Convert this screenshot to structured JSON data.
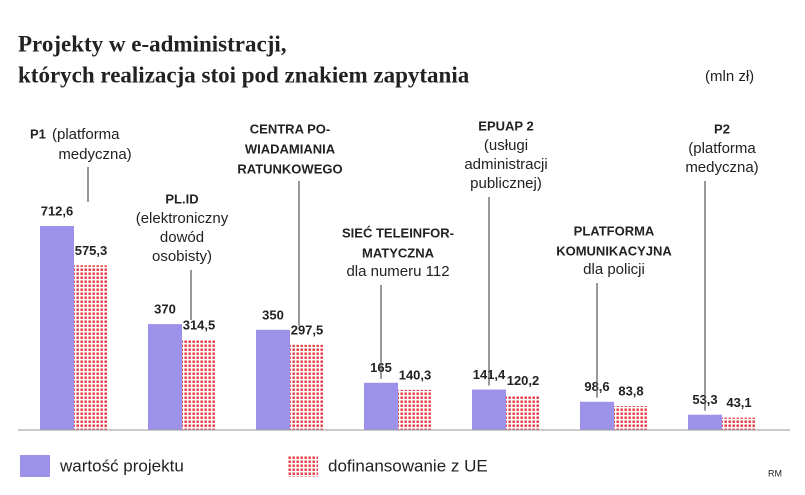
{
  "chart_data": {
    "type": "bar",
    "title": [
      "Projekty w e-administracji,",
      "których realizacja stoi pod znakiem zapytania"
    ],
    "unit": "(mln zł)",
    "credit": "RM",
    "categories": [
      {
        "title": [
          "P1"
        ],
        "note": [
          "(platforma",
          "medyczna)"
        ]
      },
      {
        "title": [
          "PL.ID"
        ],
        "note": [
          "(elektroniczny",
          "dowód",
          "osobisty)"
        ]
      },
      {
        "title": [
          "CENTRA PO-",
          "WIADAMIANIA",
          "RATUNKOWEGO"
        ],
        "note": []
      },
      {
        "title": [
          "SIEĆ TELEINFOR-",
          "MATYCZNA"
        ],
        "note": [
          "dla numeru 112"
        ]
      },
      {
        "title": [
          "EPUAP 2"
        ],
        "note": [
          "(usługi",
          "administracji",
          "publicznej)"
        ]
      },
      {
        "title": [
          "PLATFORMA",
          "KOMUNIKACYJNA"
        ],
        "note": [
          "dla policji"
        ]
      },
      {
        "title": [
          "P2"
        ],
        "note": [
          "(platforma",
          "medyczna)"
        ]
      }
    ],
    "series": [
      {
        "name": "wartość projektu",
        "color": "#9d92ea",
        "values": [
          712.6,
          370,
          350,
          165,
          141.4,
          98.6,
          53.3
        ],
        "value_labels": [
          "712,6",
          "370",
          "350",
          "165",
          "141,4",
          "98,6",
          "53,3"
        ]
      },
      {
        "name": "dofinansowanie z UE",
        "color": "#e2343c",
        "values": [
          575.3,
          314.5,
          297.5,
          140.3,
          120.2,
          83.8,
          43.1
        ],
        "value_labels": [
          "575,3",
          "314,5",
          "297,5",
          "140,3",
          "120,2",
          "83,8",
          "43,1"
        ]
      }
    ],
    "ylim": [
      0,
      800
    ]
  }
}
